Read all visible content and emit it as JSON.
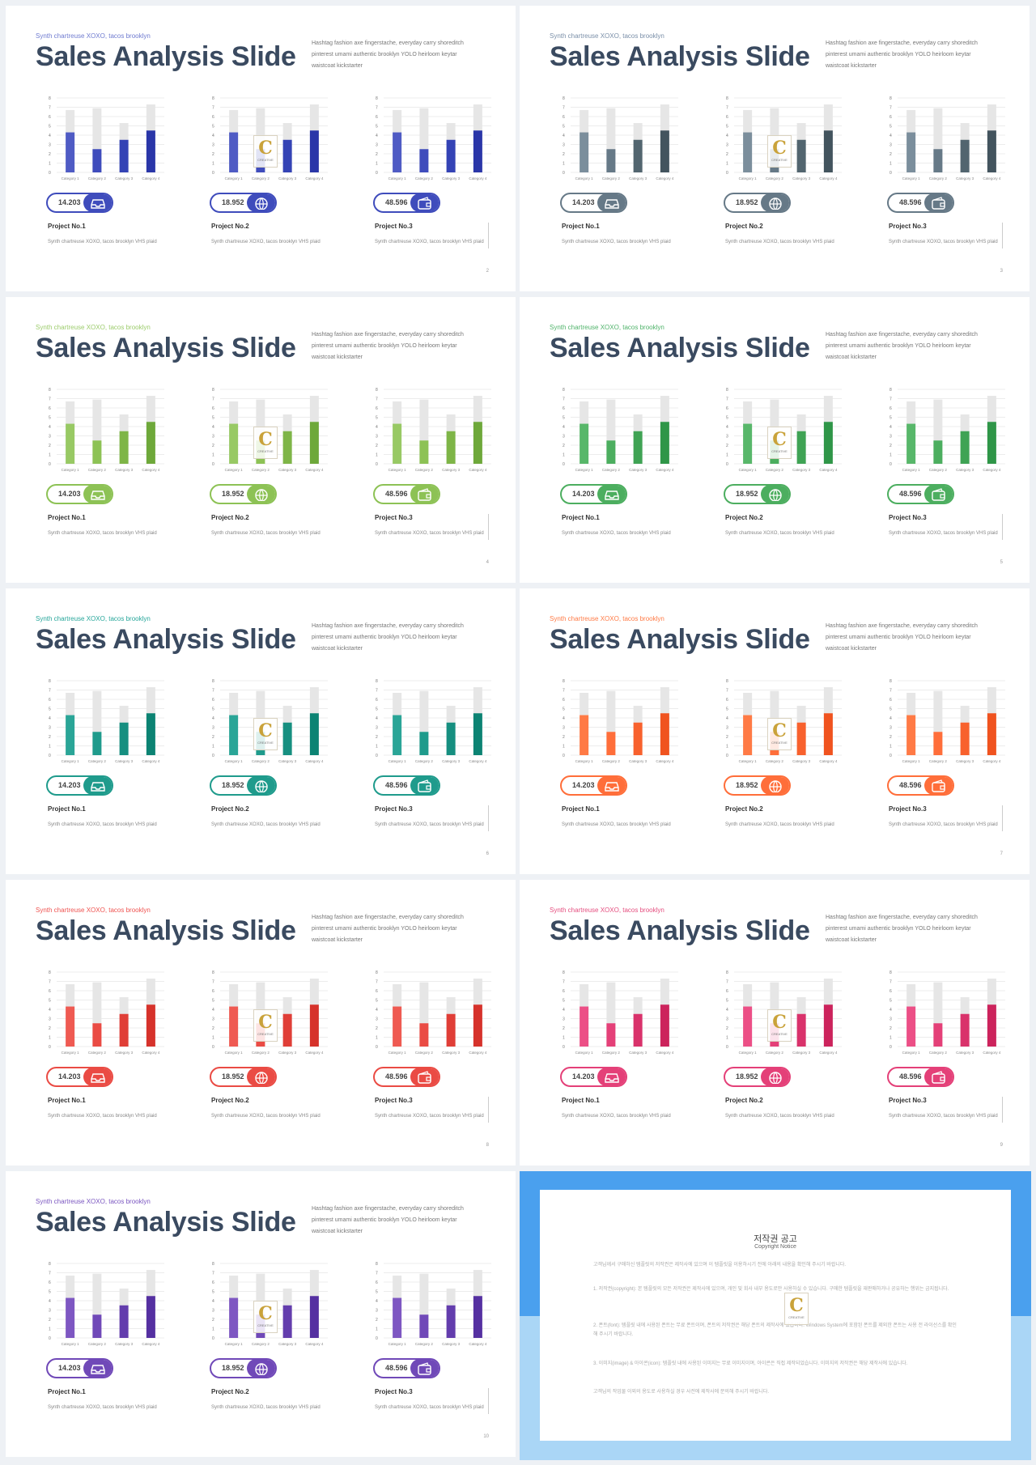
{
  "common": {
    "subtitle": "Synth chartreuse XOXO, tacos brooklyn",
    "title": "Sales Analysis Slide",
    "description": "Hashtag fashion axe fingerstache, everyday carry shoreditch pinterest umami authentic brooklyn YOLO heirloom keytar waistcoat kickstarter",
    "project_desc": "Synth chartreuse XOXO, tacos brooklyn VHS plaid",
    "watermark_letter": "C",
    "watermark_text": "CREATIVE"
  },
  "chart_data": [
    {
      "type": "bar",
      "categories": [
        "Category 1",
        "Category 2",
        "Category 3",
        "Category 4"
      ],
      "y_ticks": [
        "0",
        "1",
        "2",
        "3",
        "4",
        "5",
        "6",
        "7",
        "8"
      ],
      "ylim": [
        0,
        8
      ],
      "series": [
        {
          "values": [
            4.3,
            2.5,
            3.5,
            4.5
          ]
        },
        {
          "values": [
            6.7,
            6.9,
            5.3,
            7.3
          ]
        }
      ],
      "grid": true
    }
  ],
  "projects": [
    {
      "value": "14.203",
      "label": "Project No.1",
      "icon": "inbox-icon"
    },
    {
      "value": "18.952",
      "label": "Project No.2",
      "icon": "globe-icon"
    },
    {
      "value": "48.596",
      "label": "Project No.3",
      "icon": "wallet-icon"
    }
  ],
  "slides": [
    {
      "page": "2",
      "sub_color": "#6f7bd0",
      "colors": [
        "#4f5bc4",
        "#3f4cbc",
        "#3443b5",
        "#2a36a8"
      ]
    },
    {
      "page": "3",
      "sub_color": "#7a8fa8",
      "colors": [
        "#7b8e9c",
        "#667987",
        "#52656f",
        "#43545e"
      ]
    },
    {
      "page": "4",
      "sub_color": "#9ccc6c",
      "colors": [
        "#98c964",
        "#8dc255",
        "#7eb547",
        "#6ea83a"
      ]
    },
    {
      "page": "5",
      "sub_color": "#4fb36a",
      "colors": [
        "#58b76a",
        "#4cae5f",
        "#3fa354",
        "#2f9648"
      ]
    },
    {
      "page": "6",
      "sub_color": "#26a69a",
      "colors": [
        "#2aa597",
        "#1f9b8c",
        "#168f80",
        "#0c8373"
      ]
    },
    {
      "page": "7",
      "sub_color": "#ff7a45",
      "colors": [
        "#ff7a45",
        "#ff6e3a",
        "#f8612d",
        "#f0531f"
      ]
    },
    {
      "page": "8",
      "sub_color": "#ef5350",
      "colors": [
        "#ef5a52",
        "#ea4b44",
        "#e03e37",
        "#d6322b"
      ]
    },
    {
      "page": "9",
      "sub_color": "#e54e7f",
      "colors": [
        "#ec4f86",
        "#e44078",
        "#d9326b",
        "#cc235c"
      ]
    },
    {
      "page": "10",
      "sub_color": "#7a55c0",
      "colors": [
        "#7e57c2",
        "#7049b8",
        "#633dad",
        "#5530a1"
      ]
    }
  ],
  "copyright": {
    "title": "저작권 공고",
    "subtitle": "Copyright Notice",
    "paragraphs": [
      "고객님께서 구매하신 템플릿의 저작권은 제작사에 있으며 이 템플릿을 이용하시기 전에 아래의 내용을 확인해 주시기 바랍니다.",
      "1. 저작권(copyright): 본 템플릿의 모든 저작권은 제작사에 있으며, 개인 및 회사 내부 용도로만 사용하실 수 있습니다. 구매한 템플릿을 재판매하거나 공유하는 행위는 금지됩니다.",
      "2. 폰트(font): 템플릿 내에 사용된 폰트는 무료 폰트이며, 폰트의 저작권은 해당 폰트의 제작사에 있습니다. Windows System에 포함된 폰트를 제외한 폰트는 사용 전 라이선스를 확인해 주시기 바랍니다.",
      "3. 이미지(image) & 아이콘(icon): 템플릿 내에 사용된 이미지는 무료 이미지이며, 아이콘은 직접 제작되었습니다. 이미지의 저작권은 해당 제작사에 있습니다.",
      "고객님의 작업물 이외의 용도로 사용하실 경우 사전에 제작사에 문의해 주시기 바랍니다."
    ]
  }
}
